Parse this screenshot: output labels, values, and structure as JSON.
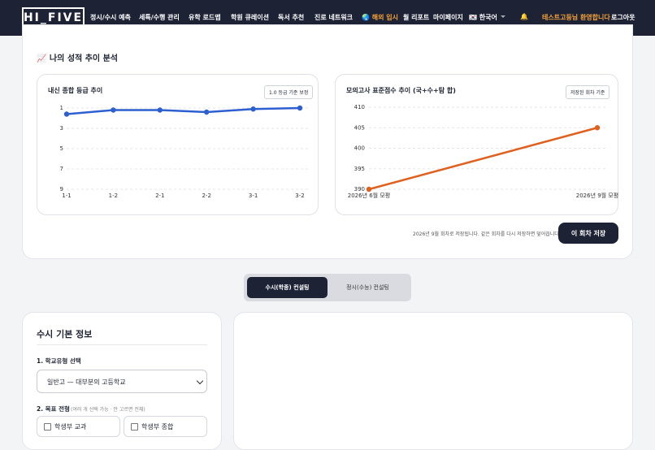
{
  "nav": {
    "logo": "HI_FIVE",
    "menu": [
      "정시/수시 예측",
      "세특/수행 관리",
      "유학 로드맵",
      "학원 큐레이션",
      "독서 추천",
      "진로 네트워크"
    ],
    "overseas": "🌏 해외 입시",
    "report": "월 리포트",
    "mypage": "마이페이지",
    "language": "🇰🇷 한국어",
    "bell": "🔔",
    "welcome": "테스트고등님 환영합니다",
    "logout": "로그아웃"
  },
  "analysis": {
    "title": "📈 나의 성적 추이 분석",
    "save_note": "2026년 9월 회차로 저장됩니다. 같은 회차를 다시 저장하면 덮어씁니다.",
    "save_button": "이 회차 저장"
  },
  "chart_data": [
    {
      "type": "line",
      "title": "내신 종합 등급 추이",
      "badge": "1.0 등급 기준 보정",
      "categories": [
        "1-1",
        "1-2",
        "2-1",
        "2-2",
        "3-1",
        "3-2"
      ],
      "values": [
        1.6,
        1.2,
        1.2,
        1.4,
        1.1,
        1.0
      ],
      "color": "#2d5fd0",
      "ylim": [
        9,
        1
      ],
      "yticks": [
        1,
        3,
        5,
        7,
        9
      ],
      "grid": true
    },
    {
      "type": "line",
      "title": "모의고사 표준점수 추이 (국+수+탐 합)",
      "badge": "저장된 회차 기준",
      "categories": [
        "2026년 6월 모평",
        "2026년 9월 모평"
      ],
      "values": [
        390,
        405
      ],
      "color": "#e0611f",
      "ylim": [
        390,
        410
      ],
      "yticks": [
        390,
        395,
        400,
        405,
        410
      ],
      "grid": true
    }
  ],
  "tabs": [
    "수시(학종) 컨설팅",
    "정시(수능) 컨설팅"
  ],
  "form": {
    "title": "수시 기본 정보",
    "school_type_label": "1. 학교유형 선택",
    "school_type_value": "일반고 — 대부분의 고등학교",
    "target_label": "2. 목표 전형",
    "target_hint": "(여러 개 선택 가능 · 안 고르면 전체)",
    "options": [
      "학생부 교과",
      "학생부 종합"
    ]
  }
}
